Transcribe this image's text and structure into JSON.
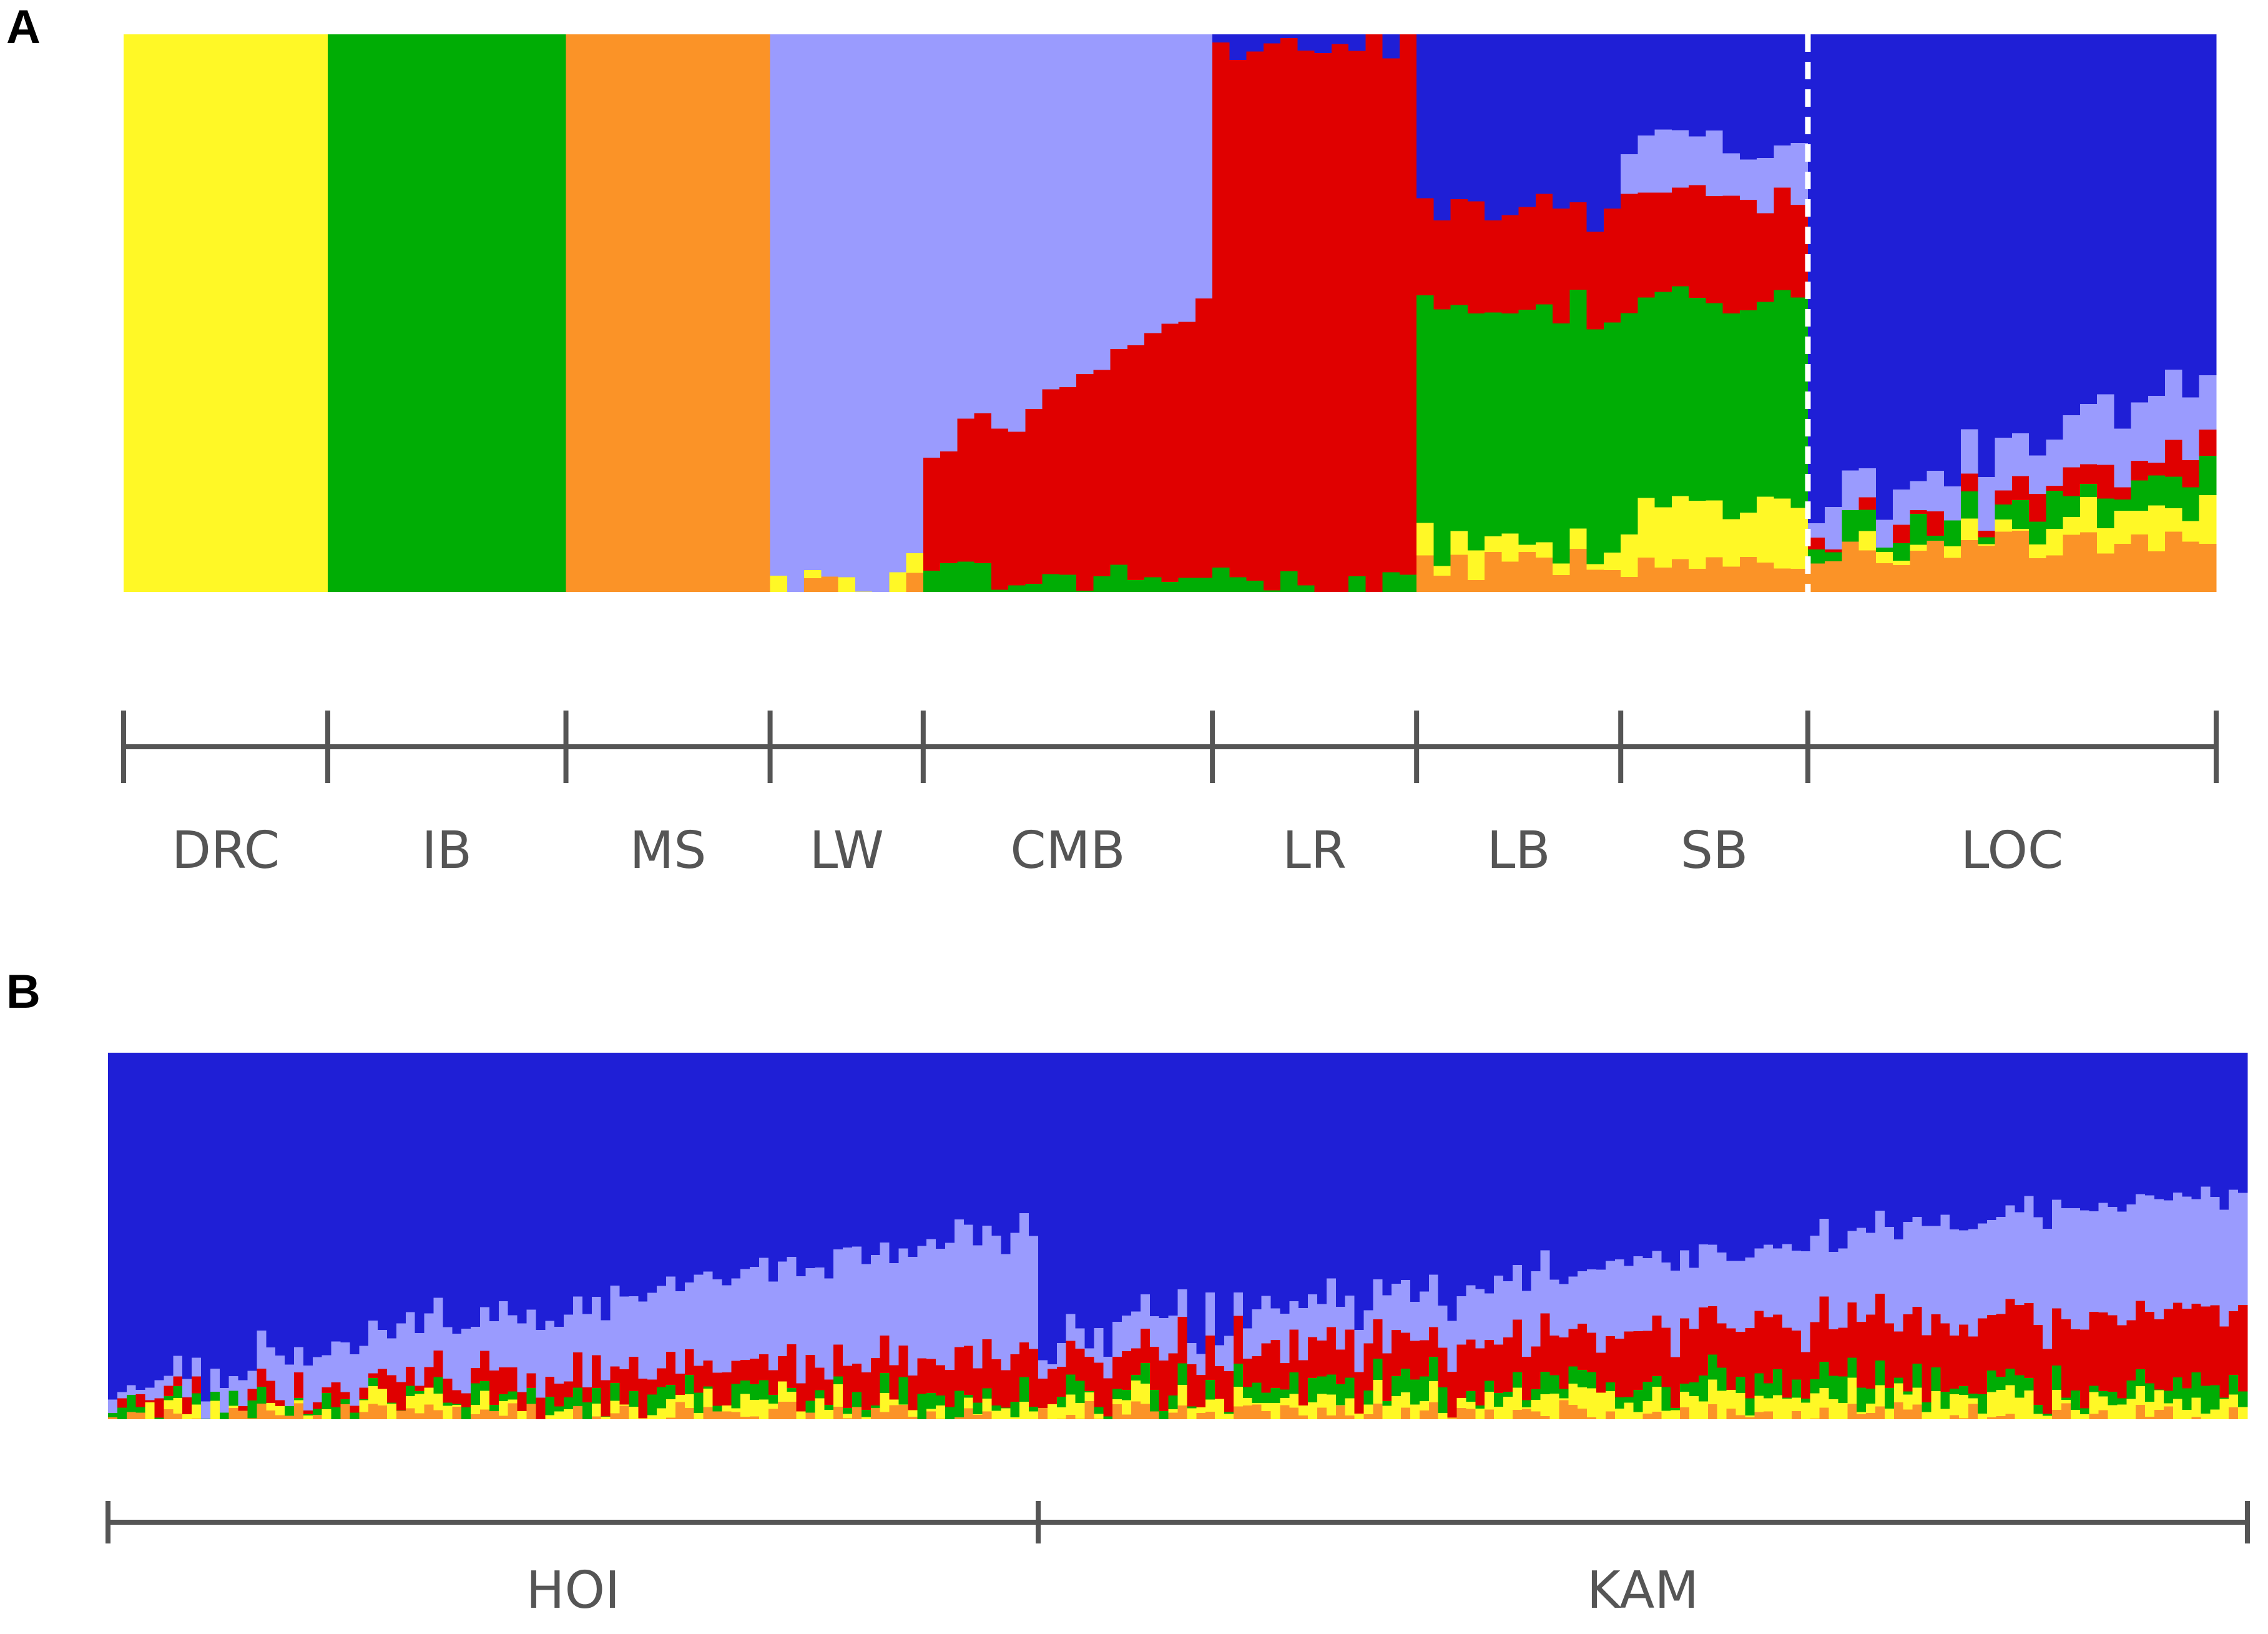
{
  "panels": {
    "a": {
      "letter": "A"
    },
    "b": {
      "letter": "B"
    }
  },
  "cluster_colors": {
    "yellow": "#fff826",
    "green": "#00ad05",
    "orange": "#fb9327",
    "lavender": "#9a9bfe",
    "red": "#e00000",
    "blue": "#1f1fd6"
  },
  "chart_data": [
    {
      "type": "bar",
      "stacked": true,
      "panel": "A",
      "description_of_values": "ancestry proportion per individual, stacked to 1",
      "series_order": [
        "orange",
        "yellow",
        "green",
        "red",
        "lavender",
        "blue"
      ],
      "groups": [
        {
          "label": "DRC",
          "n": 12,
          "profile": {
            "yellow": 1.0
          }
        },
        {
          "label": "IB",
          "n": 14,
          "profile": {
            "green": 1.0
          }
        },
        {
          "label": "MS",
          "n": 12,
          "profile": {
            "orange": 1.0
          }
        },
        {
          "label": "LW",
          "n": 9,
          "profile": {
            "lavender": 0.98,
            "orange": 0.01,
            "yellow": 0.01
          }
        },
        {
          "label": "CMB",
          "n": 17,
          "profile_start": {
            "red": 0.2,
            "green": 0.03,
            "lavender": 0.77
          },
          "profile_end": {
            "red": 0.5,
            "green": 0.02,
            "lavender": 0.48
          }
        },
        {
          "label": "LR",
          "n": 12,
          "profile": {
            "red": 0.96,
            "green": 0.02,
            "blue": 0.02
          }
        },
        {
          "label": "LB",
          "n": 12,
          "profile": {
            "orange": 0.05,
            "yellow": 0.03,
            "green": 0.42,
            "red": 0.18,
            "blue": 0.32
          }
        },
        {
          "label": "SB",
          "n": 11,
          "profile": {
            "orange": 0.04,
            "yellow": 0.1,
            "green": 0.37,
            "red": 0.19,
            "lavender": 0.1,
            "blue": 0.2
          }
        },
        {
          "label": "LOC",
          "n": 24,
          "profile_start": {
            "orange": 0.07,
            "green": 0.03,
            "red": 0.01,
            "lavender": 0.05,
            "blue": 0.84
          },
          "profile_end": {
            "orange": 0.1,
            "yellow": 0.06,
            "green": 0.05,
            "red": 0.05,
            "lavender": 0.12,
            "blue": 0.62
          }
        }
      ],
      "divider_after": "SB",
      "xlabel": "",
      "ylabel": "",
      "ylim": [
        0,
        1
      ]
    },
    {
      "type": "bar",
      "stacked": true,
      "panel": "B",
      "series_order": [
        "orange",
        "yellow",
        "green",
        "red",
        "lavender",
        "blue"
      ],
      "groups": [
        {
          "label": "HOI",
          "n": 100,
          "profile_start": {
            "orange": 0.01,
            "yellow": 0.01,
            "green": 0.01,
            "red": 0.01,
            "lavender": 0.03,
            "blue": 0.93
          },
          "profile_end": {
            "orange": 0.01,
            "yellow": 0.03,
            "green": 0.04,
            "red": 0.12,
            "lavender": 0.34,
            "blue": 0.46
          }
        },
        {
          "label": "KAM",
          "n": 130,
          "profile_start": {
            "orange": 0.01,
            "yellow": 0.03,
            "green": 0.03,
            "red": 0.09,
            "lavender": 0.05,
            "blue": 0.79
          },
          "profile_end": {
            "orange": 0.01,
            "yellow": 0.05,
            "green": 0.04,
            "red": 0.2,
            "lavender": 0.33,
            "blue": 0.37
          }
        }
      ],
      "xlabel": "",
      "ylabel": "",
      "ylim": [
        0,
        1
      ]
    }
  ]
}
